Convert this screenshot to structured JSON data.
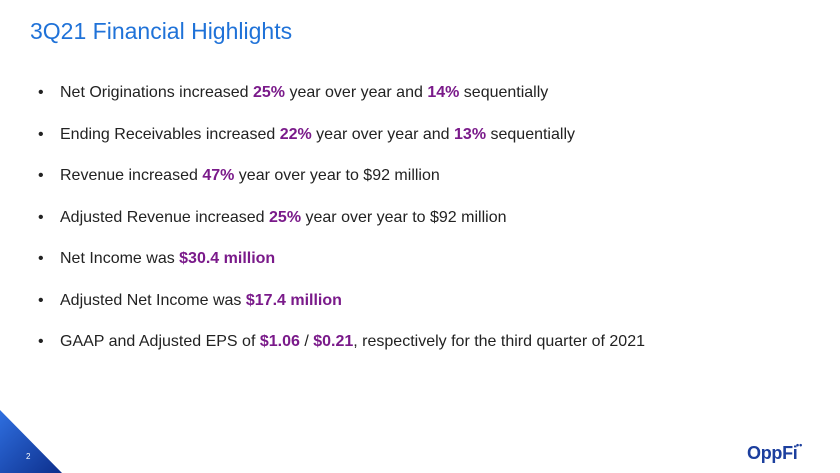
{
  "title": "3Q21 Financial Highlights",
  "bullets": [
    [
      {
        "text": "Net Originations increased ",
        "bold": false
      },
      {
        "text": "25%",
        "bold": true
      },
      {
        "text": " year over year and ",
        "bold": false
      },
      {
        "text": "14%",
        "bold": true
      },
      {
        "text": " sequentially",
        "bold": false
      }
    ],
    [
      {
        "text": "Ending Receivables increased ",
        "bold": false
      },
      {
        "text": "22%",
        "bold": true
      },
      {
        "text": " year over year and ",
        "bold": false
      },
      {
        "text": "13%",
        "bold": true
      },
      {
        "text": " sequentially",
        "bold": false
      }
    ],
    [
      {
        "text": "Revenue increased ",
        "bold": false
      },
      {
        "text": "47%",
        "bold": true
      },
      {
        "text": " year over year to $92 million",
        "bold": false
      }
    ],
    [
      {
        "text": "Adjusted Revenue increased ",
        "bold": false
      },
      {
        "text": "25%",
        "bold": true
      },
      {
        "text": " year over year to $92 million",
        "bold": false
      }
    ],
    [
      {
        "text": "Net Income was ",
        "bold": false
      },
      {
        "text": "$30.4 million",
        "bold": true
      }
    ],
    [
      {
        "text": "Adjusted Net Income was ",
        "bold": false
      },
      {
        "text": "$17.4 million",
        "bold": true
      }
    ],
    [
      {
        "text": "GAAP and Adjusted EPS of ",
        "bold": false
      },
      {
        "text": "$1.06",
        "bold": true
      },
      {
        "text": " / ",
        "bold": false
      },
      {
        "text": "$0.21",
        "bold": true
      },
      {
        "text": ", respectively for the third quarter of 2021",
        "bold": false
      }
    ]
  ],
  "page_number": "2",
  "logo": "OppFi"
}
